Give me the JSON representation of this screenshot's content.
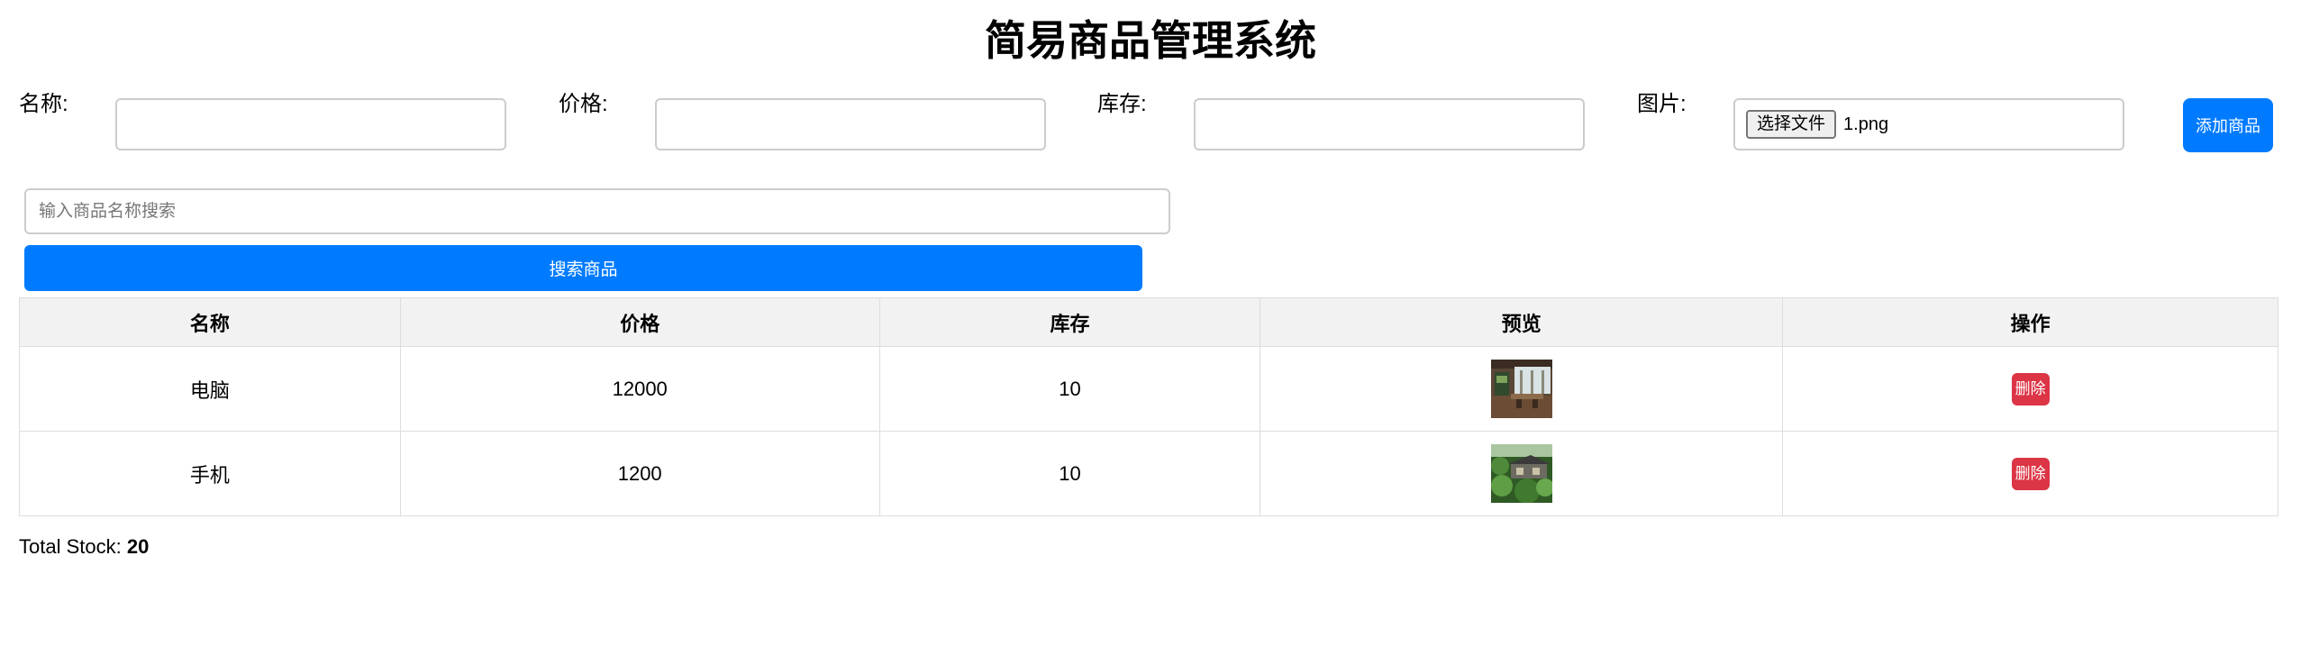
{
  "page": {
    "title": "简易商品管理系统"
  },
  "form": {
    "name_label": "名称:",
    "price_label": "价格:",
    "stock_label": "库存:",
    "image_label": "图片:",
    "name_value": "",
    "price_value": "",
    "stock_value": "",
    "file_button_label": "选择文件",
    "file_name": "1.png",
    "add_button_label": "添加商品"
  },
  "search": {
    "placeholder": "输入商品名称搜索",
    "value": "",
    "button_label": "搜索商品"
  },
  "table": {
    "headers": [
      "名称",
      "价格",
      "库存",
      "预览",
      "操作"
    ],
    "rows": [
      {
        "name": "电脑",
        "price": "12000",
        "stock": "10",
        "preview_icon": "office-interior-photo",
        "action": "删除"
      },
      {
        "name": "手机",
        "price": "1200",
        "stock": "10",
        "preview_icon": "garden-house-photo",
        "action": "删除"
      }
    ]
  },
  "summary": {
    "label": "Total Stock:",
    "value": "20"
  },
  "colors": {
    "primary": "#007bff",
    "danger": "#dc3545",
    "header_bg": "#f2f2f2",
    "border": "#dddddd"
  }
}
